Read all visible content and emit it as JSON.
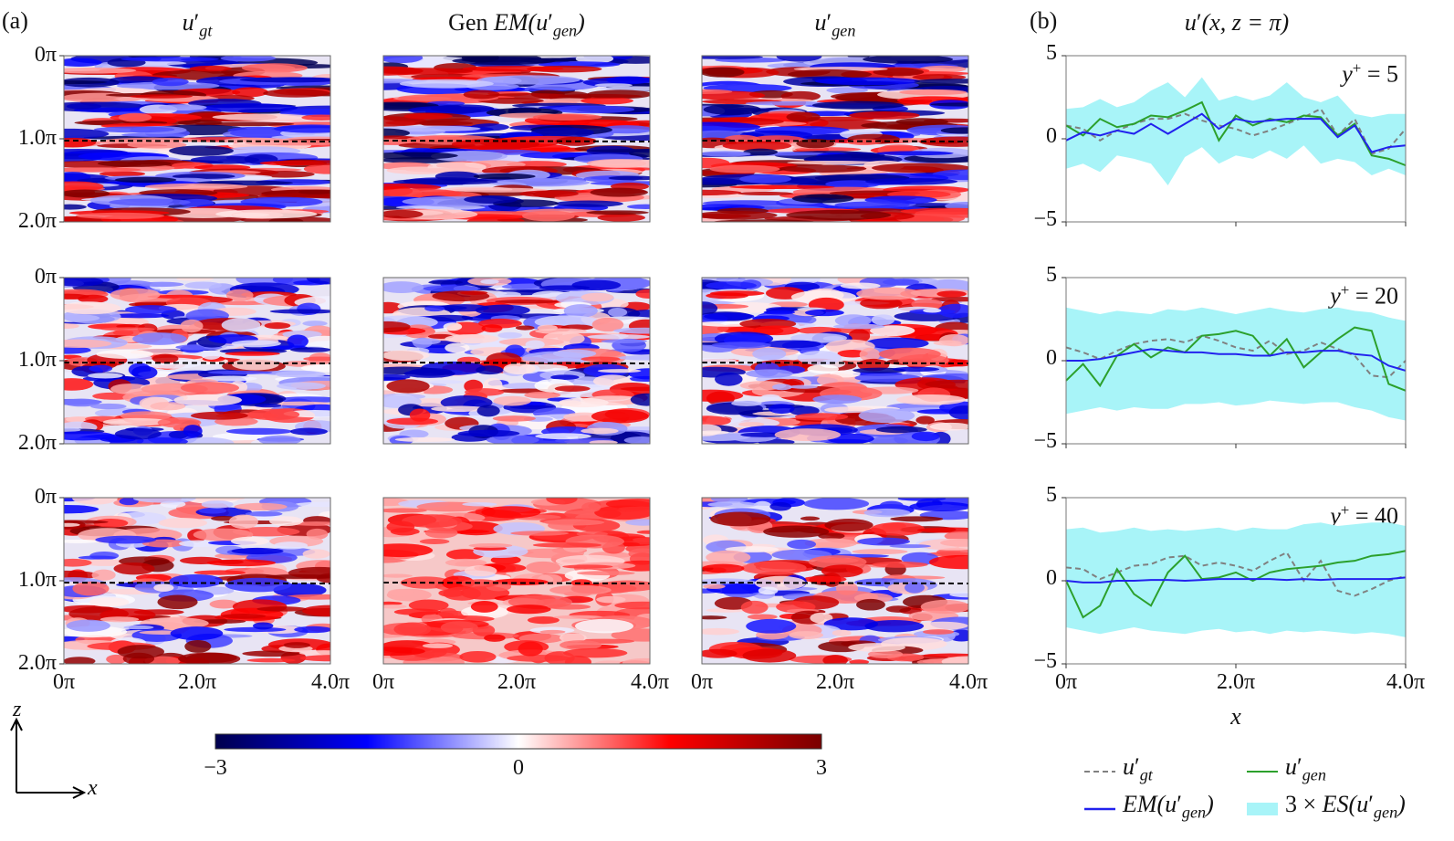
{
  "panel_a_label": "(a)",
  "panel_b_label": "(b)",
  "columns": [
    {
      "pre": "",
      "sym": "u",
      "prime": "′",
      "sub": "gt",
      "post": ""
    },
    {
      "pre": "Gen ",
      "sym": "EM(u",
      "prime": "′",
      "sub": "gen",
      "post": ")"
    },
    {
      "pre": "",
      "sym": "u",
      "prime": "′",
      "sub": "gen",
      "post": ""
    }
  ],
  "line_title": {
    "sym": "u",
    "prime": "′",
    "rest": "(x, z = π)"
  },
  "heatmap_yticks": [
    "0π",
    "1.0π",
    "2.0π"
  ],
  "heatmap_xticks": [
    "0π",
    "2.0π",
    "4.0π"
  ],
  "line_yticks": [
    "5",
    "0",
    "−5"
  ],
  "line_xticks": [
    "0π",
    "2.0π",
    "4.0π"
  ],
  "line_xlabel": "x",
  "axes_arrows": {
    "z": "z",
    "x": "x"
  },
  "colorbar": {
    "min": -3,
    "max": 3,
    "ticks": [
      "−3",
      "0",
      "3"
    ],
    "colors": [
      "#00004d",
      "#0000ff",
      "#ffffff",
      "#ff0000",
      "#7a0000"
    ]
  },
  "colors": {
    "gt": "#808080",
    "gen": "#2ca02c",
    "em": "#2222ee",
    "band": "#a8f4f8",
    "dash_line": "#000000"
  },
  "legend": {
    "gt": {
      "sym": "u",
      "prime": "′",
      "sub": "gt"
    },
    "gen": {
      "sym": "u",
      "prime": "′",
      "sub": "gen"
    },
    "em": {
      "sym": "EM(u",
      "prime": "′",
      "sub": "gen",
      "post": ")"
    },
    "es": {
      "pre": "3 × ",
      "sym": "ES(u",
      "prime": "′",
      "sub": "gen",
      "post": ")"
    }
  },
  "chart_data": [
    {
      "type": "heatmap",
      "rows": [
        "y+ = 5",
        "y+ = 20",
        "y+ = 40"
      ],
      "xlim": [
        "0π",
        "4.0π"
      ],
      "ylim": [
        "0π",
        "2.0π"
      ],
      "colorbar_range": [
        -3,
        3
      ],
      "dashed_line_at": "1.0π"
    },
    {
      "type": "line",
      "x_unit": "π",
      "x": [
        0,
        0.2,
        0.4,
        0.6,
        0.8,
        1.0,
        1.2,
        1.4,
        1.6,
        1.8,
        2.0,
        2.2,
        2.4,
        2.6,
        2.8,
        3.0,
        3.2,
        3.4,
        3.6,
        3.8,
        4.0
      ],
      "ylim": [
        -5,
        5
      ],
      "panels": [
        {
          "label": {
            "pre": "y",
            "sup": "+",
            "post": " = 5"
          },
          "gt": [
            0.8,
            0.6,
            -0.1,
            0.5,
            0.9,
            1.2,
            1.2,
            1.5,
            1.1,
            0.8,
            0.6,
            0.2,
            0.5,
            0.9,
            1.3,
            1.8,
            0.2,
            1.2,
            -0.9,
            -0.6,
            0.6
          ],
          "gen": [
            0.8,
            0.2,
            1.2,
            0.7,
            0.9,
            1.4,
            1.3,
            1.7,
            2.2,
            -0.1,
            1.4,
            0.8,
            1.2,
            1.0,
            1.4,
            1.3,
            0.2,
            0.9,
            -1.0,
            -1.2,
            -1.6
          ],
          "em": [
            -0.1,
            0.4,
            0.2,
            0.5,
            0.3,
            0.9,
            0.3,
            0.9,
            1.5,
            0.6,
            1.2,
            1.0,
            1.1,
            1.2,
            1.2,
            1.2,
            0.1,
            0.8,
            -0.8,
            -0.5,
            -0.4
          ],
          "band_upper": [
            1.8,
            1.9,
            2.4,
            1.9,
            2.2,
            2.9,
            3.4,
            2.5,
            3.7,
            2.3,
            2.6,
            2.3,
            2.6,
            3.4,
            2.5,
            2.2,
            2.6,
            1.5,
            1.3,
            1.5,
            1.5
          ],
          "band_lower": [
            -1.8,
            -1.5,
            -2.0,
            -1.0,
            -1.2,
            -1.5,
            -2.8,
            -1.1,
            -0.5,
            -1.5,
            -1.0,
            -1.2,
            -0.7,
            -1.2,
            -0.4,
            -1.5,
            -1.2,
            -1.4,
            -2.2,
            -1.8,
            -2.2
          ]
        },
        {
          "label": {
            "pre": "y",
            "sup": "+",
            "post": " = 20"
          },
          "gt": [
            0.8,
            0.5,
            0.1,
            0.6,
            1.0,
            1.2,
            1.3,
            1.1,
            1.5,
            1.2,
            0.8,
            0.6,
            1.2,
            0.4,
            0.6,
            1.1,
            0.7,
            0.3,
            -0.9,
            -1.0,
            0.0
          ],
          "gen": [
            -1.2,
            -0.2,
            -1.5,
            0.3,
            1.0,
            0.2,
            0.8,
            0.5,
            1.5,
            1.6,
            1.8,
            1.5,
            0.3,
            1.3,
            -0.4,
            0.5,
            1.3,
            2.0,
            1.8,
            -1.4,
            -1.8
          ],
          "em": [
            0,
            0,
            0.1,
            0.3,
            0.5,
            0.7,
            0.6,
            0.5,
            0.5,
            0.4,
            0.4,
            0.3,
            0.3,
            0.5,
            0.5,
            0.6,
            0.6,
            0.4,
            0.3,
            -0.3,
            -0.6
          ],
          "band_upper": [
            3.2,
            3.0,
            2.8,
            3.0,
            2.9,
            2.8,
            3.1,
            3.0,
            3.2,
            3.0,
            2.8,
            3.0,
            3.2,
            3.0,
            2.9,
            3.1,
            3.2,
            3.0,
            2.9,
            2.6,
            2.4
          ],
          "band_lower": [
            -3.2,
            -3.0,
            -2.8,
            -3.0,
            -2.8,
            -2.9,
            -2.9,
            -2.6,
            -2.6,
            -2.5,
            -2.7,
            -2.6,
            -2.4,
            -2.5,
            -2.6,
            -2.5,
            -2.5,
            -2.8,
            -3.0,
            -3.4,
            -3.6
          ]
        },
        {
          "label": {
            "pre": "y",
            "sup": "+",
            "post": " = 40"
          },
          "gt": [
            0.8,
            0.7,
            0.1,
            0.5,
            0.9,
            1.0,
            1.4,
            1.5,
            0.9,
            1.1,
            0.9,
            0.6,
            1.2,
            1.7,
            0.0,
            1.2,
            -0.6,
            -0.9,
            -0.5,
            0.0,
            0.3
          ],
          "gen": [
            0,
            -2.2,
            -1.5,
            0.7,
            -0.8,
            -1.5,
            0.5,
            1.5,
            0.1,
            0.2,
            0.5,
            0.0,
            0.5,
            0.7,
            0.8,
            0.9,
            1.1,
            1.2,
            1.5,
            1.6,
            1.8
          ],
          "em": [
            0,
            -0.1,
            -0.1,
            0,
            0,
            0.05,
            0.05,
            0,
            0.05,
            0.1,
            0.1,
            0.1,
            0.1,
            0.05,
            0.1,
            0.05,
            0.1,
            0.1,
            0.1,
            0.1,
            0.2
          ],
          "band_upper": [
            3.1,
            3.2,
            2.9,
            3.0,
            3.2,
            3.0,
            3.1,
            3.0,
            3.1,
            3.2,
            3.0,
            3.2,
            3.1,
            3.1,
            3.4,
            3.5,
            3.3,
            3.4,
            3.5,
            3.5,
            3.3
          ],
          "band_lower": [
            -2.8,
            -3.0,
            -3.2,
            -3.0,
            -2.8,
            -3.0,
            -3.1,
            -3.2,
            -3.0,
            -2.9,
            -3.1,
            -3.0,
            -3.2,
            -3.0,
            -3.1,
            -3.0,
            -3.1,
            -3.2,
            -3.1,
            -3.2,
            -3.4
          ]
        }
      ]
    }
  ]
}
